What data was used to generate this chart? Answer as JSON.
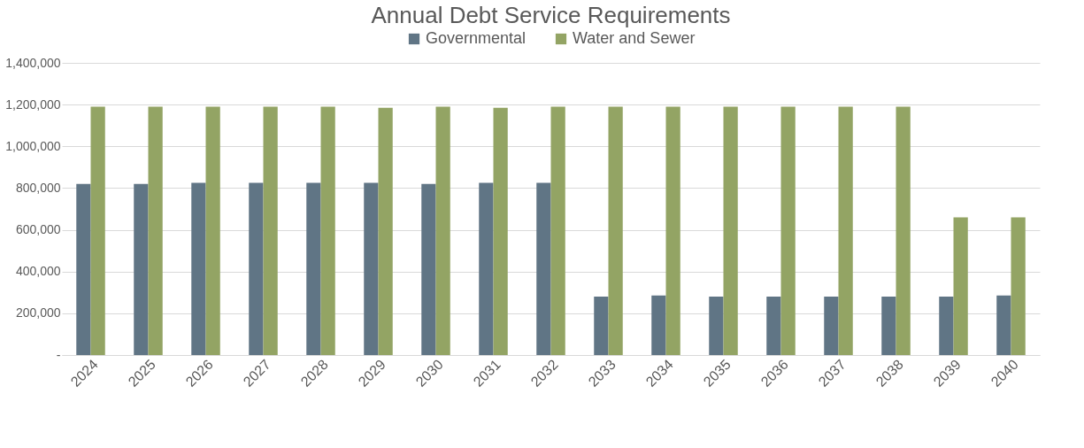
{
  "chart_data": {
    "type": "bar",
    "title": "Annual Debt Service Requirements",
    "categories": [
      "2024",
      "2025",
      "2026",
      "2027",
      "2028",
      "2029",
      "2030",
      "2031",
      "2032",
      "2033",
      "2034",
      "2035",
      "2036",
      "2037",
      "2038",
      "2039",
      "2040"
    ],
    "series": [
      {
        "name": "Governmental",
        "color": "#607585",
        "values": [
          820000,
          820000,
          825000,
          825000,
          825000,
          825000,
          820000,
          825000,
          825000,
          280000,
          285000,
          280000,
          280000,
          280000,
          280000,
          280000,
          285000
        ]
      },
      {
        "name": "Water and Sewer",
        "color": "#93a464",
        "values": [
          1190000,
          1190000,
          1190000,
          1190000,
          1190000,
          1185000,
          1190000,
          1185000,
          1190000,
          1190000,
          1190000,
          1190000,
          1190000,
          1190000,
          1190000,
          660000,
          660000
        ]
      }
    ],
    "ylim": [
      0,
      1400000
    ],
    "yticks": [
      {
        "value": 0,
        "label": "-"
      },
      {
        "value": 200000,
        "label": "200,000"
      },
      {
        "value": 400000,
        "label": "400,000"
      },
      {
        "value": 600000,
        "label": "600,000"
      },
      {
        "value": 800000,
        "label": "800,000"
      },
      {
        "value": 1000000,
        "label": "1,000,000"
      },
      {
        "value": 1200000,
        "label": "1,200,000"
      },
      {
        "value": 1400000,
        "label": "1,400,000"
      }
    ],
    "grid": true,
    "legend": "top"
  }
}
